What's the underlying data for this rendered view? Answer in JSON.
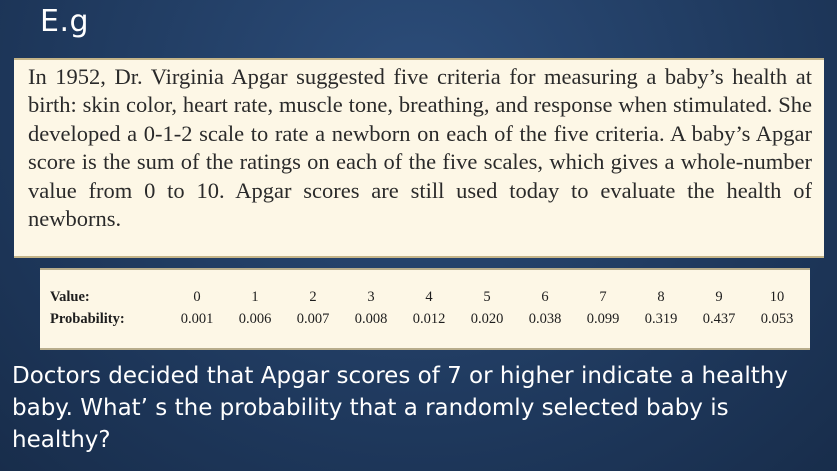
{
  "slide": {
    "title": "E.g",
    "passage": "In 1952, Dr. Virginia Apgar suggested five criteria for measuring a baby’s health at birth: skin color, heart rate, muscle tone, breathing, and response when stimulated. She developed a 0-1-2 scale to rate a newborn on each of the five criteria. A baby’s Apgar score is the sum of the ratings on each of the five scales, which gives a whole-number value from 0 to 10. Apgar scores are still used today to evaluate the health of newborns.",
    "question": "Doctors decided that Apgar scores of 7 or higher indicate a healthy baby. What’ s the probability that a randomly selected baby is healthy?"
  },
  "table": {
    "value_label": "Value:",
    "probability_label": "Probability:",
    "values": [
      "0",
      "1",
      "2",
      "3",
      "4",
      "5",
      "6",
      "7",
      "8",
      "9",
      "10"
    ],
    "probabilities": [
      "0.001",
      "0.006",
      "0.007",
      "0.008",
      "0.012",
      "0.020",
      "0.038",
      "0.099",
      "0.319",
      "0.437",
      "0.053"
    ]
  }
}
